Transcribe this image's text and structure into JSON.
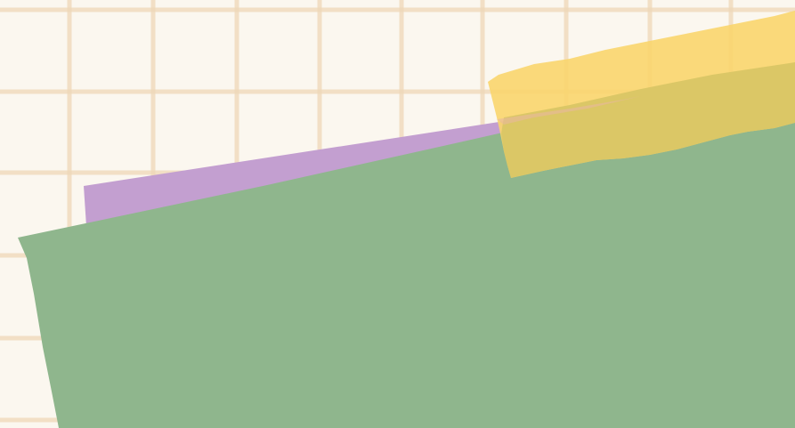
{
  "background": {
    "pattern": "grid",
    "base_color": "#fbf7ef",
    "line_color": "#efd8b8"
  },
  "papers": {
    "back_paper_color": "#c39fd0",
    "front_paper_color": "#8fb68d"
  },
  "tape": {
    "color": "#f9d56d",
    "overlay_on_green": "#dbc766",
    "overlay_on_purple": "#e8b89d"
  }
}
